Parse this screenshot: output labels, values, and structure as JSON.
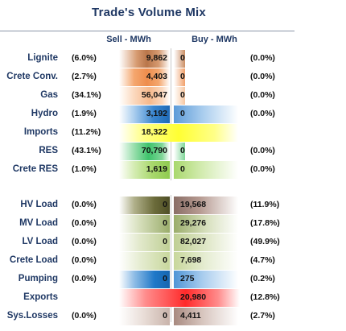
{
  "title": "Trade's Volume Mix",
  "columns": {
    "sell": "Sell - MWh",
    "buy": "Buy - MWh"
  },
  "rows": [
    {
      "label": "Lignite",
      "sell_pct": "(6.0%)",
      "sell": "9,862",
      "buy": "0",
      "buy_pct": "(0.0%)"
    },
    {
      "label": "Crete Conv.",
      "sell_pct": "(2.7%)",
      "sell": "4,403",
      "buy": "0",
      "buy_pct": "(0.0%)"
    },
    {
      "label": "Gas",
      "sell_pct": "(34.1%)",
      "sell": "56,047",
      "buy": "0",
      "buy_pct": "(0.0%)"
    },
    {
      "label": "Hydro",
      "sell_pct": "(1.9%)",
      "sell": "3,192",
      "buy": "0",
      "buy_pct": "(0.0%)"
    },
    {
      "label": "Imports",
      "sell_pct": "(11.2%)",
      "sell": "18,322",
      "buy": "",
      "buy_pct": ""
    },
    {
      "label": "RES",
      "sell_pct": "(43.1%)",
      "sell": "70,790",
      "buy": "0",
      "buy_pct": "(0.0%)"
    },
    {
      "label": "Crete RES",
      "sell_pct": "(1.0%)",
      "sell": "1,619",
      "buy": "0",
      "buy_pct": "(0.0%)"
    },
    {
      "label": "HV Load",
      "sell_pct": "(0.0%)",
      "sell": "0",
      "buy": "19,568",
      "buy_pct": "(11.9%)"
    },
    {
      "label": "MV Load",
      "sell_pct": "(0.0%)",
      "sell": "0",
      "buy": "29,276",
      "buy_pct": "(17.8%)"
    },
    {
      "label": "LV Load",
      "sell_pct": "(0.0%)",
      "sell": "0",
      "buy": "82,027",
      "buy_pct": "(49.9%)"
    },
    {
      "label": "Crete Load",
      "sell_pct": "(0.0%)",
      "sell": "0",
      "buy": "7,698",
      "buy_pct": "(4.7%)"
    },
    {
      "label": "Pumping",
      "sell_pct": "(0.0%)",
      "sell": "0",
      "buy": "275",
      "buy_pct": "(0.2%)"
    },
    {
      "label": "Exports",
      "sell_pct": "",
      "sell": "",
      "buy": "20,980",
      "buy_pct": "(12.8%)"
    },
    {
      "label": "Sys.Losses",
      "sell_pct": "(0.0%)",
      "sell": "0",
      "buy": "4,411",
      "buy_pct": "(2.7%)"
    }
  ],
  "colors": {
    "lignite": "#b9764a",
    "crete_conv": "#ee8d4d",
    "gas": "#f6b98c",
    "hydro": "#3a86cf",
    "imports": "#ffff33",
    "res": "#3ec36b",
    "crete_res": "#a9d86d",
    "hv_load": "#6b6b3a",
    "mv_load": "#9aac6a",
    "lv_load": "#bfcf94",
    "crete_load": "#c8d79c",
    "pumping": "#1f78c8",
    "exports": "#ff2a2a",
    "losses": "#a88a80"
  }
}
